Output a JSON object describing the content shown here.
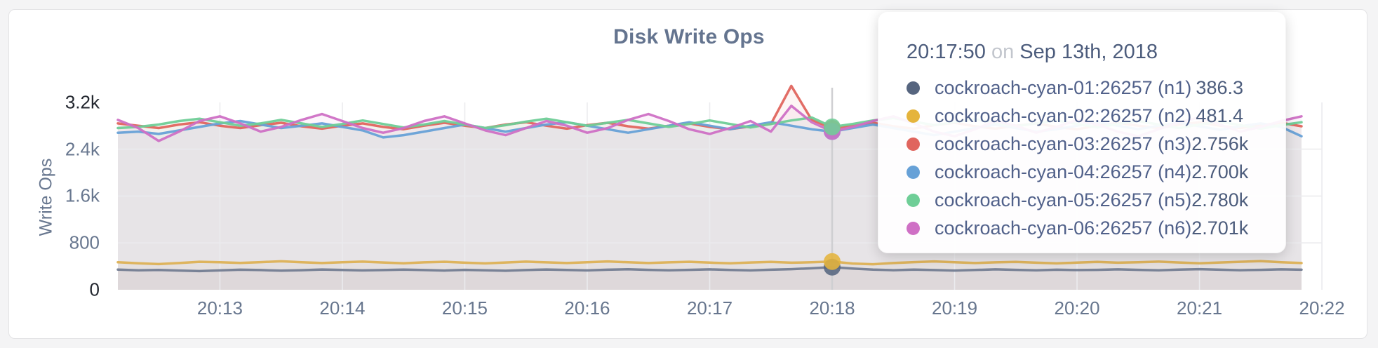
{
  "page": {
    "title": "Disk Write Ops"
  },
  "y_axis": {
    "label": "Write Ops",
    "ticks": [
      {
        "value": 0,
        "label": "0",
        "emph": true
      },
      {
        "value": 800,
        "label": "800",
        "emph": false
      },
      {
        "value": 1600,
        "label": "1.6k",
        "emph": false
      },
      {
        "value": 2400,
        "label": "2.4k",
        "emph": false
      },
      {
        "value": 3200,
        "label": "3.2k",
        "emph": true
      }
    ]
  },
  "x_axis": {
    "tick_labels": [
      "20:13",
      "20:14",
      "20:15",
      "20:16",
      "20:17",
      "20:18",
      "20:19",
      "20:20",
      "20:21",
      "20:22"
    ]
  },
  "tooltip": {
    "time": "20:17:50",
    "conjunction": "on",
    "date": "Sep 13th, 2018",
    "rows": [
      {
        "name": "cockroach-cyan-01:26257 (n1)",
        "value": "386.3",
        "color": "#56657f"
      },
      {
        "name": "cockroach-cyan-02:26257 (n2)",
        "value": "481.4",
        "color": "#e5b43c"
      },
      {
        "name": "cockroach-cyan-03:26257 (n3)",
        "value": "2.756k",
        "color": "#e0655e"
      },
      {
        "name": "cockroach-cyan-04:26257 (n4)",
        "value": "2.700k",
        "color": "#67a1d7"
      },
      {
        "name": "cockroach-cyan-05:26257 (n5)",
        "value": "2.780k",
        "color": "#6fce97"
      },
      {
        "name": "cockroach-cyan-06:26257 (n6)",
        "value": "2.701k",
        "color": "#cf70c5"
      }
    ]
  },
  "chart_data": {
    "type": "line",
    "title": "Disk Write Ops",
    "xlabel": "",
    "ylabel": "Write Ops",
    "ylim": [
      0,
      3200
    ],
    "grid": true,
    "x_start": "20:12:10",
    "x_end": "20:21:50",
    "x_step_seconds": 10,
    "hover_index": 35,
    "hover_time": "20:17:50",
    "series": [
      {
        "name": "cockroach-cyan-01:26257 (n1)",
        "line_color": "#737d92",
        "dot_color": "#56657f",
        "values": [
          345,
          332,
          338,
          328,
          318,
          330,
          342,
          336,
          326,
          334,
          346,
          338,
          330,
          336,
          344,
          336,
          328,
          340,
          332,
          324,
          336,
          346,
          338,
          330,
          342,
          350,
          340,
          332,
          340,
          348,
          338,
          330,
          342,
          352,
          366,
          386.3,
          362,
          344,
          334,
          344,
          336,
          328,
          338,
          348,
          340,
          332,
          342,
          336,
          340,
          348,
          340,
          332,
          344,
          352,
          342,
          334,
          340,
          348,
          342
        ]
      },
      {
        "name": "cockroach-cyan-02:26257 (n2)",
        "line_color": "#ddb155",
        "dot_color": "#e5b43c",
        "values": [
          470,
          452,
          438,
          456,
          478,
          470,
          458,
          472,
          486,
          470,
          456,
          470,
          480,
          466,
          452,
          468,
          478,
          462,
          450,
          466,
          480,
          468,
          456,
          470,
          484,
          470,
          456,
          468,
          478,
          464,
          452,
          466,
          476,
          462,
          470,
          481.4,
          448,
          436,
          456,
          472,
          484,
          470,
          456,
          468,
          476,
          462,
          450,
          464,
          476,
          462,
          470,
          480,
          466,
          452,
          466,
          478,
          490,
          470,
          456
        ]
      },
      {
        "name": "cockroach-cyan-03:26257 (n3)",
        "line_color": "#e0655e",
        "dot_color": "#e0655e",
        "values": [
          2840,
          2800,
          2760,
          2820,
          2860,
          2800,
          2760,
          2810,
          2850,
          2790,
          2750,
          2800,
          2840,
          2780,
          2740,
          2800,
          2850,
          2800,
          2760,
          2820,
          2860,
          2800,
          2750,
          2810,
          2850,
          2790,
          2750,
          2800,
          2840,
          2780,
          2740,
          2790,
          2830,
          3480,
          2900,
          2756,
          2800,
          2850,
          2790,
          2750,
          2810,
          2850,
          2790,
          2750,
          2800,
          2840,
          2780,
          2740,
          2800,
          2850,
          2800,
          2760,
          2820,
          2860,
          2800,
          2760,
          2810,
          2850,
          2790
        ]
      },
      {
        "name": "cockroach-cyan-04:26257 (n4)",
        "line_color": "#67a1d7",
        "dot_color": "#67a1d7",
        "values": [
          2680,
          2700,
          2660,
          2720,
          2780,
          2840,
          2880,
          2820,
          2760,
          2800,
          2840,
          2780,
          2720,
          2600,
          2640,
          2700,
          2760,
          2820,
          2760,
          2700,
          2760,
          2820,
          2860,
          2800,
          2740,
          2680,
          2740,
          2800,
          2860,
          2800,
          2740,
          2800,
          2860,
          2800,
          2740,
          2700,
          2760,
          2820,
          2760,
          2700,
          2640,
          2700,
          2760,
          2820,
          2760,
          2700,
          2740,
          2800,
          2860,
          2800,
          2740,
          2800,
          2850,
          2790,
          2730,
          2790,
          2840,
          2780,
          2620
        ]
      },
      {
        "name": "cockroach-cyan-05:26257 (n5)",
        "line_color": "#6fce97",
        "dot_color": "#6fce97",
        "values": [
          2760,
          2780,
          2820,
          2880,
          2920,
          2860,
          2800,
          2840,
          2900,
          2840,
          2780,
          2830,
          2890,
          2830,
          2770,
          2820,
          2880,
          2820,
          2760,
          2810,
          2870,
          2920,
          2860,
          2800,
          2850,
          2900,
          2840,
          2780,
          2830,
          2890,
          2830,
          2770,
          2830,
          2890,
          2940,
          2780,
          2830,
          2890,
          2930,
          2870,
          2810,
          2860,
          2910,
          2850,
          2790,
          2840,
          2890,
          2830,
          2770,
          2830,
          2880,
          2820,
          2760,
          2820,
          2870,
          2810,
          2750,
          2810,
          2860
        ]
      },
      {
        "name": "cockroach-cyan-06:26257 (n6)",
        "line_color": "#cf70c5",
        "dot_color": "#cf70c5",
        "values": [
          2900,
          2760,
          2540,
          2700,
          2880,
          2960,
          2840,
          2700,
          2780,
          2900,
          3000,
          2880,
          2760,
          2680,
          2760,
          2880,
          2960,
          2840,
          2720,
          2640,
          2760,
          2880,
          2800,
          2680,
          2760,
          2900,
          3000,
          2880,
          2740,
          2660,
          2760,
          2880,
          2700,
          3140,
          2860,
          2701,
          2780,
          2880,
          2960,
          2840,
          2700,
          2620,
          2740,
          2880,
          2800,
          2680,
          2780,
          2900,
          2820,
          2700,
          2620,
          2740,
          2860,
          2940,
          2820,
          2700,
          2780,
          2880,
          2960
        ]
      }
    ]
  }
}
